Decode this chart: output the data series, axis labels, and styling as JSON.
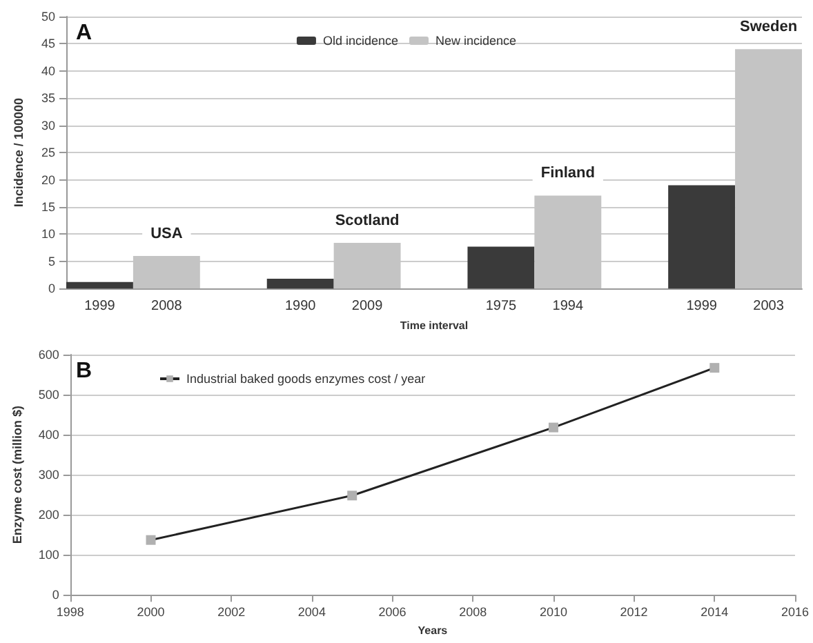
{
  "chart_data": [
    {
      "type": "bar",
      "stacked": true,
      "xlabel": "Time interval",
      "ylabel": "Incidence / 100000",
      "categories": [
        "1999",
        "2008",
        null,
        "1990",
        "2009",
        null,
        "1975",
        "1994",
        null,
        "1999",
        "2003"
      ],
      "series": [
        {
          "name": "Old incidence",
          "color": "#3a3a3a",
          "values": [
            1.2,
            null,
            null,
            1.8,
            null,
            null,
            7.7,
            null,
            null,
            19,
            null
          ]
        },
        {
          "name": "New incidence",
          "color": "#c4c4c4",
          "values": [
            null,
            6,
            null,
            null,
            8.4,
            null,
            null,
            17.1,
            null,
            null,
            44
          ]
        }
      ],
      "ylim": [
        0,
        50
      ],
      "yticks": [
        0,
        5,
        10,
        15,
        20,
        25,
        30,
        35,
        40,
        45,
        50
      ],
      "grid": "y",
      "legend": "top",
      "annotations": [
        "A",
        "USA",
        "Scotland",
        "Finland",
        "Sweden"
      ]
    },
    {
      "type": "line",
      "xlabel": "Years",
      "ylabel": "Enzyme cost (million $)",
      "x": [
        2000,
        2005,
        2010,
        2014
      ],
      "series": [
        {
          "name": "Industrial baked goods enzymes cost / year",
          "color": "#222222",
          "values": [
            137,
            248,
            418,
            567
          ]
        }
      ],
      "marker": "square",
      "xlim": [
        1998,
        2016
      ],
      "xticks": [
        1998,
        2000,
        2002,
        2004,
        2006,
        2008,
        2010,
        2012,
        2014,
        2016
      ],
      "ylim": [
        0,
        600
      ],
      "yticks": [
        0,
        100,
        200,
        300,
        400,
        500,
        600
      ],
      "grid": "y",
      "legend": "top left",
      "annotations": [
        "B"
      ]
    }
  ]
}
